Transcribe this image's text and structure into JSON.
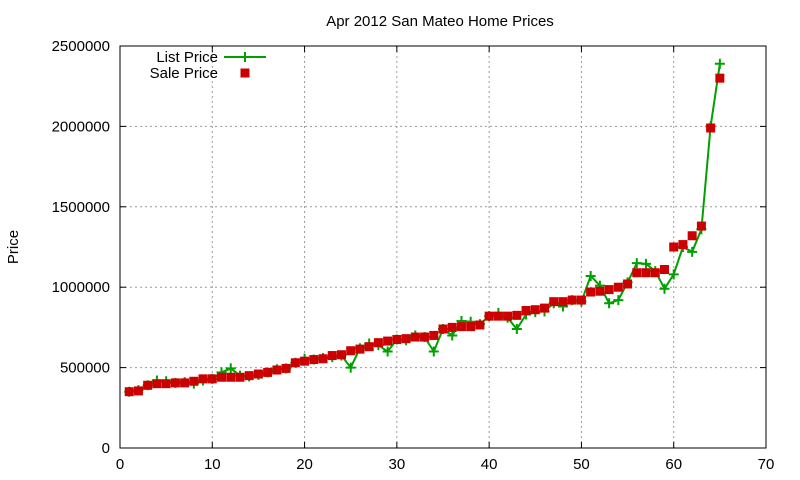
{
  "chart_data": {
    "type": "line",
    "title": "Apr 2012 San Mateo Home Prices",
    "xlabel": "",
    "ylabel": "Price",
    "xlim": [
      0,
      70
    ],
    "ylim": [
      0,
      2500000
    ],
    "xticks": [
      0,
      10,
      20,
      30,
      40,
      50,
      60,
      70
    ],
    "yticks": [
      0,
      500000,
      1000000,
      1500000,
      2000000,
      2500000
    ],
    "grid": true,
    "legend_position": "top-left",
    "x": [
      1,
      2,
      3,
      4,
      5,
      6,
      7,
      8,
      9,
      10,
      11,
      12,
      13,
      14,
      15,
      16,
      17,
      18,
      19,
      20,
      21,
      22,
      23,
      24,
      25,
      26,
      27,
      28,
      29,
      30,
      31,
      32,
      33,
      34,
      35,
      36,
      37,
      38,
      39,
      40,
      41,
      42,
      43,
      44,
      45,
      46,
      47,
      48,
      49,
      50,
      51,
      52,
      53,
      54,
      55,
      56,
      57,
      58,
      59,
      60,
      61,
      62,
      63,
      64,
      65
    ],
    "series": [
      {
        "name": "List Price",
        "marker": "plus",
        "line": true,
        "color": "#00a000",
        "values": [
          350000,
          360000,
          390000,
          420000,
          415000,
          405000,
          410000,
          400000,
          420000,
          430000,
          470000,
          495000,
          450000,
          445000,
          455000,
          470000,
          490000,
          495000,
          530000,
          555000,
          550000,
          560000,
          565000,
          575000,
          500000,
          620000,
          650000,
          640000,
          600000,
          675000,
          670000,
          700000,
          690000,
          600000,
          740000,
          700000,
          790000,
          785000,
          770000,
          820000,
          840000,
          810000,
          740000,
          830000,
          845000,
          850000,
          900000,
          880000,
          920000,
          910000,
          1070000,
          1010000,
          900000,
          920000,
          1030000,
          1150000,
          1145000,
          1100000,
          990000,
          1080000,
          1250000,
          1220000,
          1360000,
          2000000,
          2390000
        ]
      },
      {
        "name": "Sale Price",
        "marker": "square",
        "line": false,
        "color": "#cc0000",
        "values": [
          350000,
          355000,
          390000,
          400000,
          400000,
          405000,
          405000,
          415000,
          430000,
          430000,
          440000,
          440000,
          440000,
          450000,
          460000,
          470000,
          485000,
          495000,
          530000,
          540000,
          550000,
          555000,
          575000,
          580000,
          605000,
          615000,
          630000,
          655000,
          665000,
          675000,
          680000,
          690000,
          690000,
          700000,
          740000,
          750000,
          755000,
          755000,
          765000,
          820000,
          820000,
          820000,
          825000,
          855000,
          860000,
          870000,
          910000,
          910000,
          920000,
          920000,
          970000,
          975000,
          985000,
          1000000,
          1020000,
          1090000,
          1090000,
          1090000,
          1110000,
          1250000,
          1265000,
          1320000,
          1380000,
          1990000,
          2300000
        ]
      }
    ]
  }
}
